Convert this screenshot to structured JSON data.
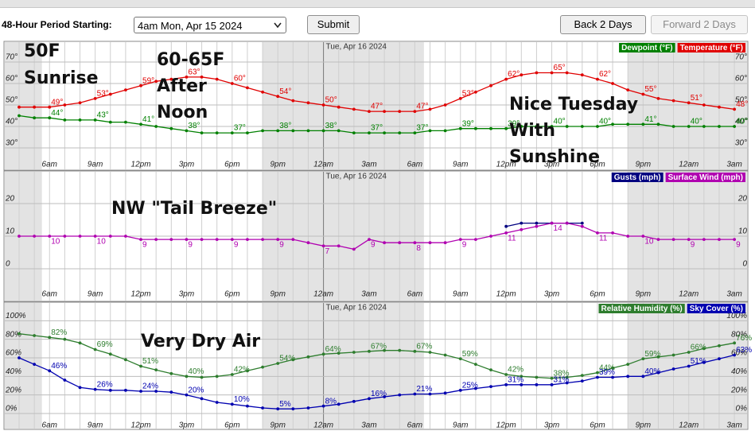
{
  "header": {
    "period_label": "48-Hour Period Starting:",
    "period_value": "4am Mon, Apr 15 2024",
    "submit": "Submit",
    "back": "Back 2 Days",
    "forward": "Forward 2 Days"
  },
  "chart_data": [
    {
      "type": "line",
      "date_label": "Tue, Apr 16 2024",
      "categories": [
        null,
        null,
        "6am",
        null,
        null,
        "9am",
        null,
        null,
        "12pm",
        null,
        null,
        "3pm",
        null,
        null,
        "6pm",
        null,
        null,
        "9pm",
        null,
        null,
        "12am",
        null,
        null,
        "3am",
        null,
        null,
        "6am",
        null,
        null,
        "9am",
        null,
        null,
        "12pm",
        null,
        null,
        "3pm",
        null,
        null,
        "6pm",
        null,
        null,
        "9pm",
        null,
        null,
        "12am",
        null,
        null,
        "3am"
      ],
      "ylim": [
        20,
        80
      ],
      "yticks": [
        {
          "value": 30,
          "label": "30°"
        },
        {
          "value": 40,
          "label": "40°"
        },
        {
          "value": 50,
          "label": "50°"
        },
        {
          "value": 60,
          "label": "60°"
        },
        {
          "value": 70,
          "label": "70°"
        }
      ],
      "grid": true,
      "series": [
        {
          "name": "Dewpoint (°F)",
          "color": "#008000",
          "values": [
            45,
            44,
            44,
            43,
            43,
            43,
            42,
            42,
            41,
            40,
            39,
            38,
            37,
            37,
            37,
            37,
            38,
            38,
            38,
            38,
            38,
            38,
            37,
            37,
            37,
            37,
            37,
            38,
            38,
            39,
            39,
            39,
            39,
            40,
            40,
            40,
            40,
            40,
            40,
            41,
            41,
            41,
            41,
            40,
            40,
            40,
            40,
            40
          ],
          "value_labels": [
            null,
            null,
            "44°",
            null,
            null,
            "43°",
            null,
            null,
            "41°",
            null,
            null,
            "38°",
            null,
            null,
            "37°",
            null,
            null,
            "38°",
            null,
            null,
            "38°",
            null,
            null,
            "37°",
            null,
            null,
            "37°",
            null,
            null,
            "39°",
            null,
            null,
            "39°",
            null,
            null,
            "40°",
            null,
            null,
            "40°",
            null,
            null,
            "41°",
            null,
            null,
            "40°",
            null,
            null,
            "40°"
          ]
        },
        {
          "name": "Temperature (°F)",
          "color": "#e00000",
          "values": [
            49,
            49,
            49,
            50,
            51,
            53,
            55,
            57,
            59,
            61,
            62,
            63,
            63,
            62,
            60,
            58,
            56,
            54,
            52,
            51,
            50,
            49,
            48,
            47,
            47,
            47,
            47,
            48,
            50,
            53,
            56,
            59,
            62,
            64,
            65,
            65,
            65,
            64,
            62,
            60,
            57,
            55,
            53,
            52,
            51,
            50,
            49,
            48
          ],
          "value_labels": [
            null,
            null,
            "49°",
            null,
            null,
            "53°",
            null,
            null,
            "59°",
            null,
            null,
            "63°",
            null,
            null,
            "60°",
            null,
            null,
            "54°",
            null,
            null,
            "50°",
            null,
            null,
            "47°",
            null,
            null,
            "47°",
            null,
            null,
            "53°",
            null,
            null,
            "62°",
            null,
            null,
            "65°",
            null,
            null,
            "62°",
            null,
            null,
            "55°",
            null,
            null,
            "51°",
            null,
            null,
            "48°"
          ]
        }
      ],
      "annotations": [
        [
          "50F",
          "Sunrise"
        ],
        [
          "60-65F",
          "After",
          "Noon"
        ],
        [
          "Nice Tuesday",
          "With",
          "Sunshine"
        ]
      ]
    },
    {
      "type": "line",
      "date_label": "Tue, Apr 16 2024",
      "categories": [
        null,
        null,
        "6am",
        null,
        null,
        "9am",
        null,
        null,
        "12pm",
        null,
        null,
        "3pm",
        null,
        null,
        "6pm",
        null,
        null,
        "9pm",
        null,
        null,
        "12am",
        null,
        null,
        "3am",
        null,
        null,
        "6am",
        null,
        null,
        "9am",
        null,
        null,
        "12pm",
        null,
        null,
        "3pm",
        null,
        null,
        "6pm",
        null,
        null,
        "9pm",
        null,
        null,
        "12am",
        null,
        null,
        "3am"
      ],
      "ylim": [
        -10,
        30
      ],
      "yticks": [
        0,
        10,
        20
      ],
      "grid": true,
      "series": [
        {
          "name": "Gusts (mph)",
          "color": "#000080",
          "values": [
            null,
            null,
            null,
            null,
            null,
            null,
            null,
            null,
            null,
            null,
            null,
            null,
            null,
            null,
            null,
            null,
            null,
            null,
            null,
            null,
            null,
            null,
            null,
            null,
            null,
            null,
            null,
            null,
            null,
            null,
            null,
            null,
            13,
            14,
            14,
            14,
            14,
            14,
            null,
            null,
            null,
            null,
            null,
            null,
            null,
            null,
            null,
            null
          ]
        },
        {
          "name": "Surface Wind (mph)",
          "color": "#b000b0",
          "data_labels": true,
          "values": [
            10,
            10,
            10,
            10,
            10,
            10,
            10,
            10,
            9,
            9,
            9,
            9,
            9,
            9,
            9,
            9,
            9,
            9,
            9,
            8,
            7,
            7,
            6,
            9,
            8,
            8,
            8,
            8,
            8,
            9,
            9,
            10,
            11,
            12,
            13,
            14,
            14,
            13,
            11,
            11,
            10,
            10,
            9,
            9,
            9,
            9,
            9,
            9
          ]
        }
      ],
      "annotations": [
        [
          "NW \"Tail Breeze\""
        ]
      ]
    },
    {
      "type": "line",
      "date_label": "Tue, Apr 16 2024",
      "categories": [
        null,
        null,
        "6am",
        null,
        null,
        "9am",
        null,
        null,
        "12pm",
        null,
        null,
        "3pm",
        null,
        null,
        "6pm",
        null,
        null,
        "9pm",
        null,
        null,
        "12am",
        null,
        null,
        "3am",
        null,
        null,
        "6am",
        null,
        null,
        "9am",
        null,
        null,
        "12pm",
        null,
        null,
        "3pm",
        null,
        null,
        "6pm",
        null,
        null,
        "9pm",
        null,
        null,
        "12am",
        null,
        null,
        "3am"
      ],
      "ylim": [
        0,
        120
      ],
      "yticks": [
        {
          "value": 0,
          "label": "0%"
        },
        {
          "value": 20,
          "label": "20%"
        },
        {
          "value": 40,
          "label": "40%"
        },
        {
          "value": 60,
          "label": "60%"
        },
        {
          "value": 80,
          "label": "80%"
        },
        {
          "value": 100,
          "label": "100%"
        }
      ],
      "grid": true,
      "series": [
        {
          "name": "Relative Humidity (%)",
          "color": "#2e7d2e",
          "values": [
            86,
            84,
            82,
            80,
            76,
            69,
            64,
            58,
            51,
            47,
            43,
            40,
            39,
            40,
            42,
            46,
            50,
            54,
            58,
            61,
            64,
            65,
            66,
            67,
            68,
            68,
            67,
            66,
            63,
            59,
            53,
            47,
            42,
            40,
            39,
            38,
            39,
            41,
            44,
            49,
            53,
            59,
            61,
            63,
            66,
            70,
            73,
            76
          ],
          "value_labels": [
            null,
            null,
            "82%",
            null,
            null,
            "69%",
            null,
            null,
            "51%",
            null,
            null,
            "40%",
            null,
            null,
            "42%",
            null,
            null,
            "54%",
            null,
            null,
            "64%",
            null,
            null,
            "67%",
            null,
            null,
            "67%",
            null,
            null,
            "59%",
            null,
            null,
            "42%",
            null,
            null,
            "38%",
            null,
            null,
            "44%",
            null,
            null,
            "59%",
            null,
            null,
            "66%",
            null,
            null,
            "76%"
          ]
        },
        {
          "name": "Sky Cover (%)",
          "color": "#0000b0",
          "values": [
            60,
            53,
            46,
            36,
            28,
            26,
            25,
            25,
            24,
            24,
            23,
            20,
            16,
            12,
            10,
            8,
            6,
            5,
            5,
            6,
            8,
            10,
            13,
            16,
            18,
            20,
            21,
            21,
            22,
            25,
            27,
            29,
            31,
            31,
            31,
            31,
            33,
            35,
            39,
            39,
            40,
            40,
            44,
            48,
            51,
            55,
            59,
            63
          ],
          "value_labels": [
            null,
            null,
            "46%",
            null,
            null,
            "26%",
            null,
            null,
            "24%",
            null,
            null,
            "20%",
            null,
            null,
            "10%",
            null,
            null,
            "5%",
            null,
            null,
            "8%",
            null,
            null,
            "16%",
            null,
            null,
            "21%",
            null,
            null,
            "25%",
            null,
            null,
            "31%",
            null,
            null,
            "31%",
            null,
            null,
            "39%",
            null,
            null,
            "40%",
            null,
            null,
            "51%",
            null,
            null,
            "63%"
          ]
        }
      ],
      "annotations": [
        [
          "Very Dry Air"
        ]
      ]
    }
  ]
}
